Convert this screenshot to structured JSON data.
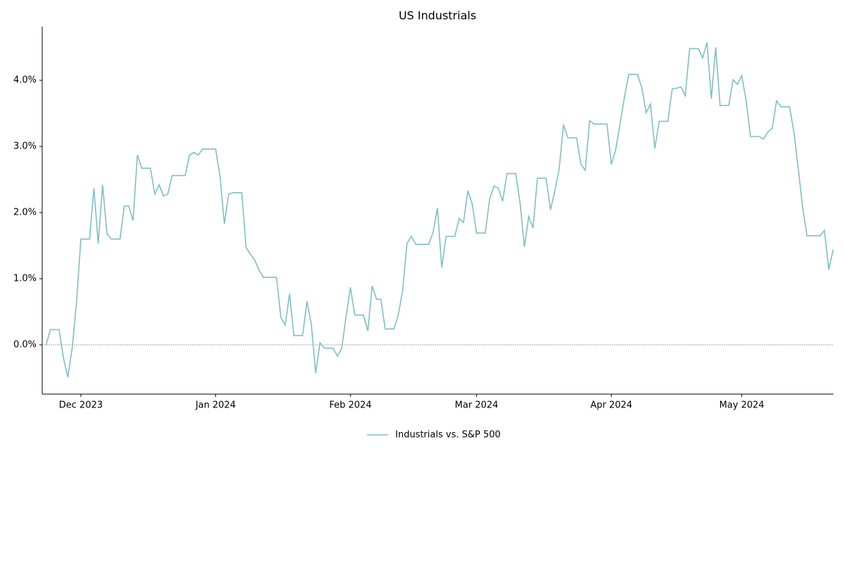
{
  "chart_data": {
    "type": "line",
    "title": "US Industrials",
    "categories": [
      null,
      null,
      null,
      null,
      null,
      null,
      null,
      null,
      "Dec 2023",
      null,
      null,
      null,
      null,
      null,
      null,
      null,
      null,
      null,
      null,
      null,
      null,
      null,
      null,
      null,
      null,
      null,
      null,
      null,
      null,
      null,
      null,
      null,
      null,
      null,
      null,
      null,
      null,
      null,
      null,
      "Jan 2024",
      null,
      null,
      null,
      null,
      null,
      null,
      null,
      null,
      null,
      null,
      null,
      null,
      null,
      null,
      null,
      null,
      null,
      null,
      null,
      null,
      null,
      null,
      null,
      null,
      null,
      null,
      null,
      null,
      null,
      null,
      "Feb 2024",
      null,
      null,
      null,
      null,
      null,
      null,
      null,
      null,
      null,
      null,
      null,
      null,
      null,
      null,
      null,
      null,
      null,
      null,
      null,
      null,
      null,
      null,
      null,
      null,
      null,
      null,
      null,
      null,
      "Mar 2024",
      null,
      null,
      null,
      null,
      null,
      null,
      null,
      null,
      null,
      null,
      null,
      null,
      null,
      null,
      null,
      null,
      null,
      null,
      null,
      null,
      null,
      null,
      null,
      null,
      null,
      null,
      null,
      null,
      null,
      null,
      "Apr 2024",
      null,
      null,
      null,
      null,
      null,
      null,
      null,
      null,
      null,
      null,
      null,
      null,
      null,
      null,
      null,
      null,
      null,
      null,
      null,
      null,
      null,
      null,
      null,
      null,
      null,
      null,
      null,
      null,
      null,
      "May 2024",
      null,
      null,
      null,
      null,
      null,
      null,
      null,
      null,
      null,
      null,
      null,
      null,
      null,
      null,
      null,
      null,
      null,
      null,
      null,
      null,
      null
    ],
    "series": [
      {
        "name": "Industrials vs. S&P 500",
        "color": "#7fbfc5",
        "values": [
          0,
          0.23,
          0.23,
          0.23,
          -0.2,
          -0.49,
          -0.05,
          0.64,
          1.6,
          1.6,
          1.6,
          2.37,
          1.53,
          2.42,
          1.68,
          1.6,
          1.6,
          1.6,
          2.1,
          2.1,
          1.88,
          2.87,
          2.67,
          2.67,
          2.67,
          2.28,
          2.42,
          2.25,
          2.28,
          2.56,
          2.56,
          2.56,
          2.56,
          2.87,
          2.91,
          2.87,
          2.96,
          2.96,
          2.96,
          2.96,
          2.55,
          1.83,
          2.28,
          2.3,
          2.3,
          2.3,
          1.47,
          1.37,
          1.28,
          1.13,
          1.02,
          1.02,
          1.02,
          1.02,
          0.41,
          0.3,
          0.77,
          0.14,
          0.14,
          0.14,
          0.66,
          0.31,
          -0.43,
          0.03,
          -0.05,
          -0.05,
          -0.05,
          -0.17,
          -0.05,
          0.43,
          0.87,
          0.45,
          0.45,
          0.45,
          0.21,
          0.89,
          0.69,
          0.69,
          0.24,
          0.24,
          0.24,
          0.45,
          0.82,
          1.53,
          1.64,
          1.52,
          1.52,
          1.52,
          1.52,
          1.7,
          2.07,
          1.17,
          1.64,
          1.64,
          1.64,
          1.91,
          1.85,
          2.33,
          2.13,
          1.69,
          1.69,
          1.69,
          2.2,
          2.4,
          2.37,
          2.17,
          2.59,
          2.59,
          2.59,
          2.15,
          1.48,
          1.94,
          1.77,
          2.52,
          2.52,
          2.52,
          2.04,
          2.33,
          2.66,
          3.33,
          3.13,
          3.13,
          3.13,
          2.73,
          2.64,
          3.39,
          3.34,
          3.34,
          3.34,
          3.34,
          2.73,
          2.95,
          3.34,
          3.74,
          4.09,
          4.09,
          4.09,
          3.89,
          3.51,
          3.64,
          2.97,
          3.38,
          3.38,
          3.38,
          3.87,
          3.88,
          3.9,
          3.77,
          4.48,
          4.48,
          4.48,
          4.34,
          4.57,
          3.72,
          4.5,
          3.62,
          3.62,
          3.62,
          4.01,
          3.94,
          4.07,
          3.69,
          3.15,
          3.15,
          3.15,
          3.11,
          3.22,
          3.27,
          3.69,
          3.6,
          3.6,
          3.6,
          3.21,
          2.66,
          2.07,
          1.65,
          1.65,
          1.65,
          1.65,
          1.73,
          1.14,
          1.44
        ]
      }
    ],
    "ylim": [
      -0.745,
      4.81
    ],
    "yticks": [
      {
        "value": 0,
        "label": "0.0%"
      },
      {
        "value": 1,
        "label": "1.0%"
      },
      {
        "value": 2,
        "label": "2.0%"
      },
      {
        "value": 3,
        "label": "3.0%"
      },
      {
        "value": 4,
        "label": "4.0%"
      }
    ],
    "zero_line": true,
    "legend": "bottom"
  }
}
